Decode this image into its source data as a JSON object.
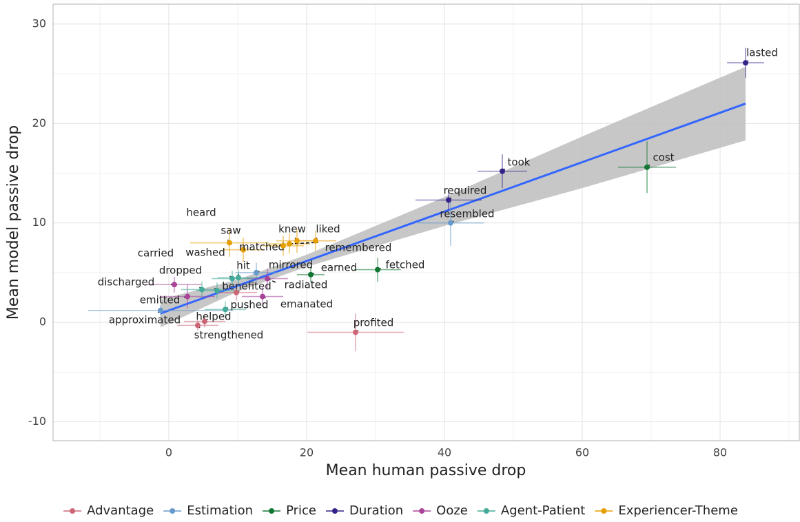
{
  "chart_data": {
    "type": "scatter",
    "xlabel": "Mean human passive drop",
    "ylabel": "Mean model passive drop",
    "xlim": [
      -16.8,
      91.5
    ],
    "ylim": [
      -11.9,
      32
    ],
    "xticks": [
      0,
      20,
      40,
      60,
      80
    ],
    "yticks": [
      -10,
      0,
      10,
      20,
      30
    ],
    "grid": true,
    "minor_grid": true,
    "legend": "bottom",
    "series": [
      {
        "name": "Advantage",
        "color": "#cc6677",
        "labels": [
          "profited",
          "benefited",
          "helped",
          "strengthened"
        ],
        "x": [
          27.1,
          9.8,
          5.2,
          4.2
        ],
        "values": [
          -1.0,
          3.0,
          0.1,
          -0.3
        ],
        "xerr": [
          7,
          3,
          3,
          3
        ],
        "yerr": [
          1.9,
          0.8,
          0.6,
          0.5
        ]
      },
      {
        "name": "Estimation",
        "color": "#6699cc",
        "labels": [
          "resembled",
          "mirrored",
          "approximated"
        ],
        "x": [
          40.9,
          12.7,
          -1.2
        ],
        "values": [
          10.0,
          5.0,
          1.2
        ],
        "xerr": [
          4.8,
          3,
          10.5
        ],
        "yerr": [
          2.3,
          1,
          0.5
        ]
      },
      {
        "name": "Price",
        "color": "#117733",
        "labels": [
          "cost",
          "fetched",
          "earned"
        ],
        "x": [
          69.4,
          30.3,
          20.6
        ],
        "values": [
          15.6,
          5.3,
          4.8
        ],
        "xerr": [
          4.2,
          3.4,
          2
        ],
        "yerr": [
          2.6,
          1.2,
          0.8
        ]
      },
      {
        "name": "Duration",
        "color": "#332288",
        "labels": [
          "lasted",
          "took",
          "required"
        ],
        "x": [
          83.7,
          48.4,
          40.6
        ],
        "values": [
          26.1,
          15.2,
          12.3
        ],
        "xerr": [
          2.7,
          3.6,
          4.8
        ],
        "yerr": [
          1.5,
          1.7,
          1
        ]
      },
      {
        "name": "Ooze",
        "color": "#aa4499",
        "labels": [
          "discharged",
          "emitted",
          "radiated",
          "emanated"
        ],
        "x": [
          0.8,
          2.7,
          14.3,
          13.6
        ],
        "values": [
          3.8,
          2.6,
          4.4,
          2.6
        ],
        "xerr": [
          4,
          4,
          3,
          3
        ],
        "yerr": [
          0.8,
          1.2,
          1,
          1
        ]
      },
      {
        "name": "Agent-Patient",
        "color": "#44aa99",
        "labels": [
          "dropped",
          "carried",
          "washed",
          "hit",
          "pushed"
        ],
        "x": [
          4.8,
          7.0,
          9.2,
          10.1,
          8.2
        ],
        "values": [
          3.3,
          3.2,
          4.4,
          4.5,
          1.3
        ],
        "xerr": [
          3,
          3,
          3,
          3,
          3
        ],
        "yerr": [
          0.8,
          0.8,
          0.8,
          0.8,
          0.8
        ]
      },
      {
        "name": "Experiencer-Theme",
        "color": "#e69f00",
        "labels": [
          "heard",
          "saw",
          "matched",
          "remembered",
          "knew",
          "liked"
        ],
        "x": [
          8.8,
          10.8,
          16.6,
          17.5,
          18.6,
          21.3
        ],
        "values": [
          8.0,
          7.3,
          7.7,
          7.9,
          8.2,
          8.2
        ],
        "xerr": [
          5.7,
          3,
          3,
          3,
          3,
          3
        ],
        "yerr": [
          1.4,
          1.2,
          1,
          1,
          1.2,
          1
        ]
      }
    ],
    "fit": {
      "color": "#3366ff",
      "band_color": "#bdbdbd",
      "x": [
        -1.2,
        10,
        20,
        40,
        60,
        83.7
      ],
      "y": [
        0.9,
        3.69,
        6.17,
        11.14,
        16.11,
        22.0
      ],
      "lower": [
        -0.5,
        3.1,
        5.6,
        9.7,
        13.5,
        18.3
      ],
      "upper": [
        2.3,
        4.3,
        6.8,
        12.6,
        18.7,
        25.7
      ]
    }
  }
}
